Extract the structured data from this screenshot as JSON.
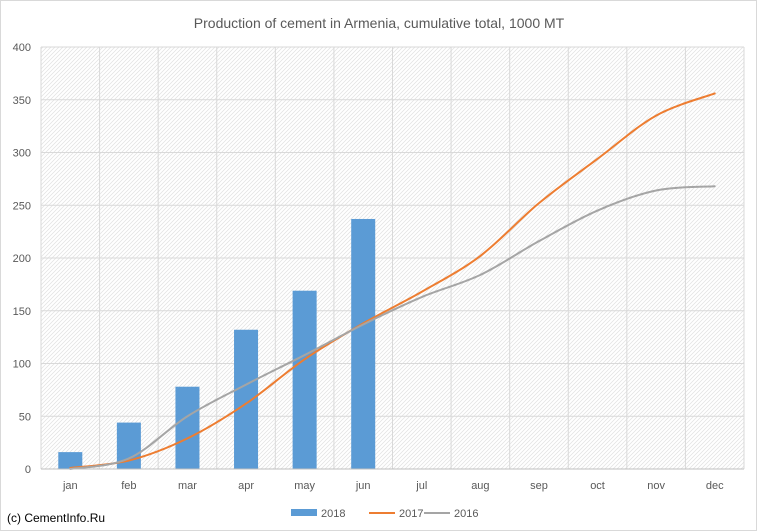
{
  "chart_data": {
    "type": "bar",
    "title": "Production of cement in Armenia, cumulative total, 1000 MT",
    "xlabel": "",
    "ylabel": "",
    "categories": [
      "jan",
      "feb",
      "mar",
      "apr",
      "may",
      "jun",
      "jul",
      "aug",
      "sep",
      "oct",
      "nov",
      "dec"
    ],
    "ylim": [
      0,
      400
    ],
    "yticks": [
      0,
      50,
      100,
      150,
      200,
      250,
      300,
      350,
      400
    ],
    "grid": true,
    "legend_position": "bottom",
    "series": [
      {
        "name": "2018",
        "type": "bar",
        "color": "#5b9bd5",
        "values": [
          16,
          44,
          78,
          132,
          169,
          237,
          null,
          null,
          null,
          null,
          null,
          null
        ]
      },
      {
        "name": "2017",
        "type": "line",
        "color": "#ed7d31",
        "values": [
          1,
          8,
          29,
          62,
          104,
          138,
          168,
          202,
          252,
          294,
          335,
          356
        ]
      },
      {
        "name": "2016",
        "type": "line",
        "color": "#a5a5a5",
        "values": [
          0,
          10,
          50,
          80,
          108,
          137,
          163,
          184,
          216,
          245,
          264,
          268
        ]
      }
    ]
  },
  "footer": {
    "copyright": "(c) CementInfo.Ru"
  }
}
